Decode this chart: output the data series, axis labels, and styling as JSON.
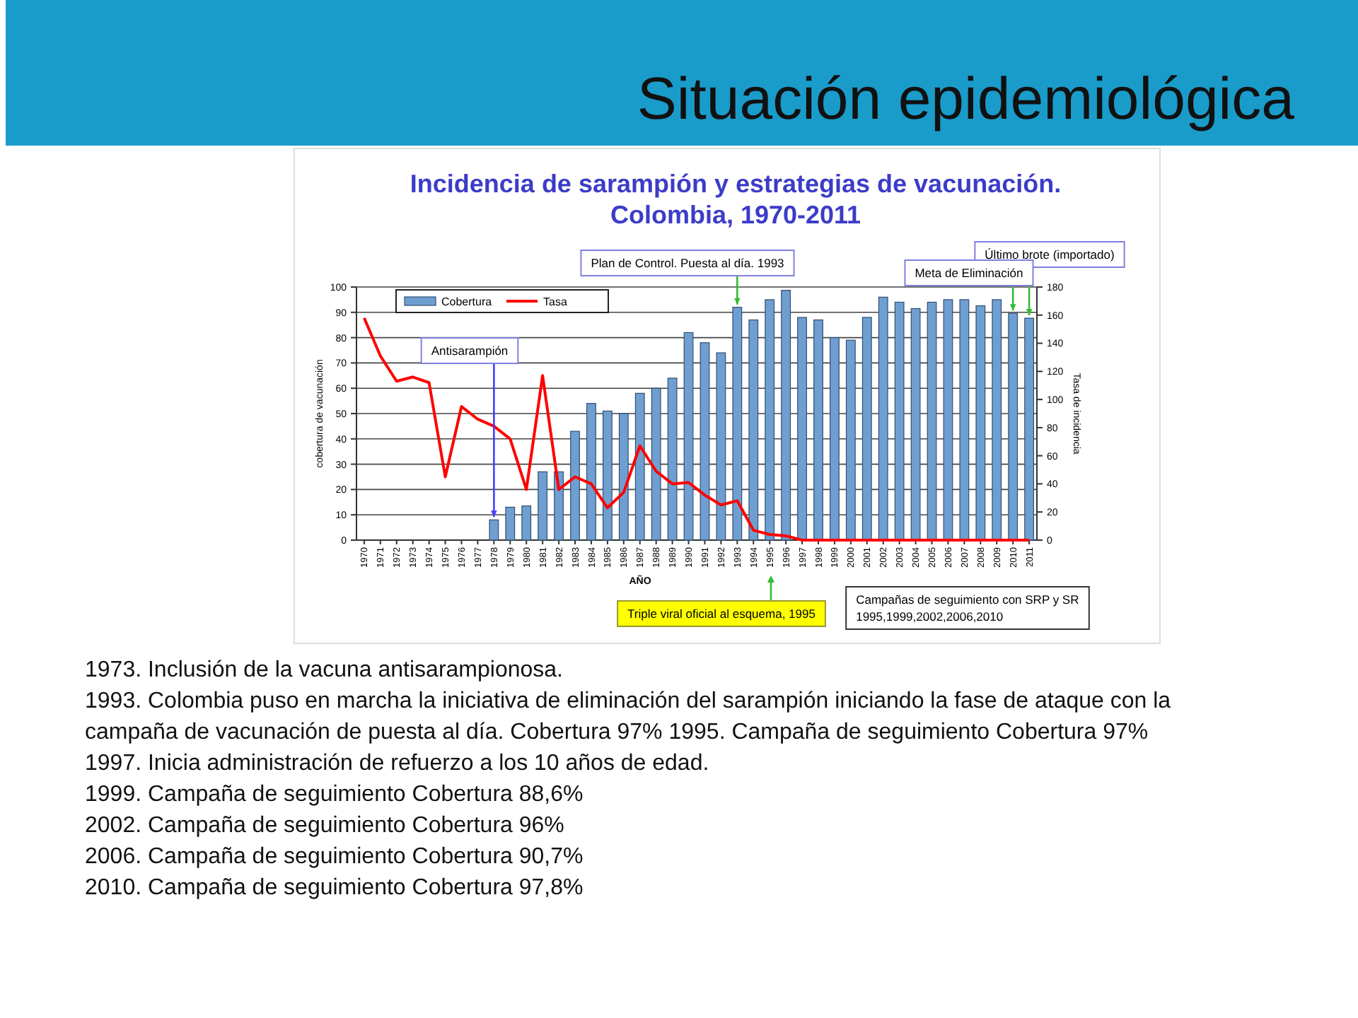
{
  "chart_data": {
    "type": "bar",
    "title": "Situación epidemiológica",
    "subtitle": "Incidencia de sarampión y estrategias de vacunación. Colombia, 1970-2011",
    "xlabel": "AÑO",
    "ylabel": "cobertura de vacunación",
    "y2label": "Tasa de incidencia",
    "categories": [
      "1970",
      "1971",
      "1972",
      "1973",
      "1974",
      "1975",
      "1976",
      "1977",
      "1978",
      "1979",
      "1980",
      "1981",
      "1982",
      "1983",
      "1984",
      "1985",
      "1986",
      "1987",
      "1988",
      "1989",
      "1990",
      "1991",
      "1992",
      "1993",
      "1994",
      "1995",
      "1996",
      "1997",
      "1998",
      "1999",
      "2000",
      "2001",
      "2002",
      "2003",
      "2004",
      "2005",
      "2006",
      "2007",
      "2008",
      "2009",
      "2010",
      "2011"
    ],
    "series": [
      {
        "name": "Cobertura",
        "color": "#6f9fd1",
        "values": [
          null,
          null,
          null,
          null,
          null,
          null,
          null,
          null,
          8,
          13,
          13.5,
          27,
          27,
          43,
          54,
          51,
          50,
          58,
          60,
          64,
          82,
          78,
          74,
          92,
          87,
          95,
          98.7,
          88,
          87,
          80,
          79,
          88,
          96,
          94,
          91.5,
          94,
          95,
          95,
          92.6,
          95,
          89.6,
          87.7
        ]
      },
      {
        "name": "Tasa",
        "type": "line",
        "axis": "y2",
        "color": "#ff0000",
        "values": [
          158,
          131,
          113,
          116,
          112,
          45,
          95,
          86,
          81,
          72,
          36,
          117,
          36,
          45,
          40,
          23,
          34,
          67,
          49,
          40,
          41,
          32,
          25,
          28,
          7,
          4,
          3,
          0,
          0,
          0,
          0,
          0,
          0,
          0,
          0,
          0,
          0,
          0,
          0,
          0,
          0,
          0
        ]
      }
    ],
    "ylim": [
      0,
      100
    ],
    "yticks": [
      0,
      10,
      20,
      30,
      40,
      50,
      60,
      70,
      80,
      90,
      100
    ],
    "y2lim": [
      0,
      180
    ],
    "y2ticks": [
      0,
      20,
      40,
      60,
      80,
      100,
      120,
      140,
      160,
      180
    ],
    "grid": "y",
    "legend": "top left",
    "annotations": [
      {
        "text": "Antisarampión",
        "x": "1978",
        "y": 8
      },
      {
        "text": "Plan de Control. Puesta al día. 1993",
        "x": "1993",
        "y": 92
      },
      {
        "text": "Último brote (importado)",
        "x": "2011",
        "y": 87.7
      },
      {
        "text": "Meta de Eliminación",
        "x": "2010",
        "y": 89.6
      },
      "Triple viral oficial al esquema, 1995",
      "Campañas de seguimiento con SRP y SR 1995,1999,2002,2006,2010",
      "1973. Inclusión de la vacuna antisarampionosa.",
      "1993. Colombia puso en marcha la iniciativa de eliminación del sarampión iniciando la fase de ataque con la campaña de vacunación de puesta al día. Cobertura 97% 1995. Campaña de seguimiento Cobertura 97%",
      "1997. Inicia administración de refuerzo a los 10 años de edad.",
      "1999. Campaña de seguimiento Cobertura 88,6%",
      "2002. Campaña de seguimiento Cobertura 96%",
      "2006. Campaña de seguimiento Cobertura 90,7%",
      "2010. Campaña de seguimiento Cobertura 97,8%"
    ]
  }
}
